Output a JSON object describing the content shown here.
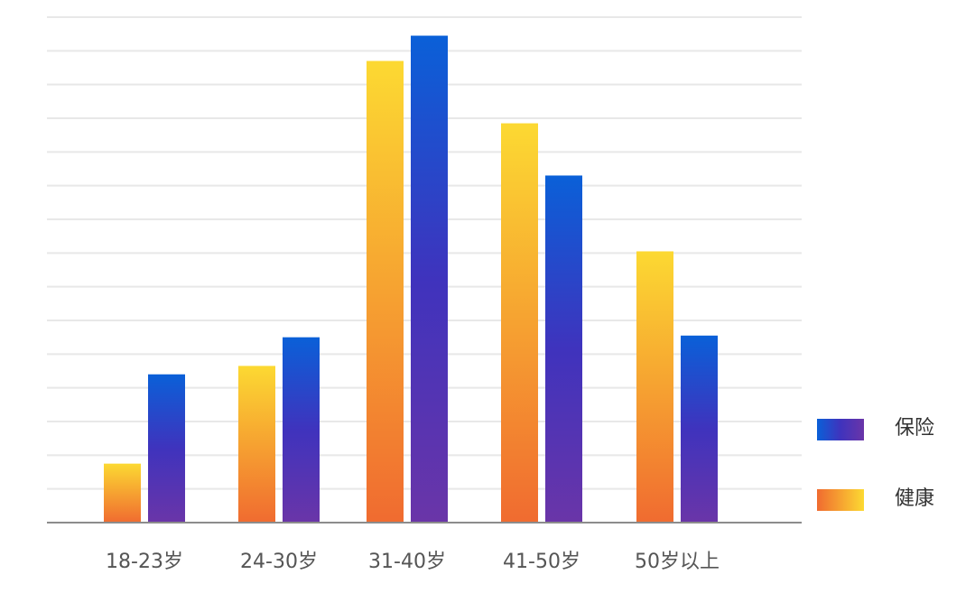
{
  "chart_data": {
    "type": "bar",
    "categories": [
      "18-23岁",
      "24-30岁",
      "31-40岁",
      "41-50岁",
      "50岁以上"
    ],
    "series": [
      {
        "name": "健康",
        "values": [
          3.5,
          9.3,
          27.4,
          23.7,
          16.1
        ],
        "gradient": {
          "top": "#fcd932",
          "bottom": "#f06b30"
        }
      },
      {
        "name": "保险",
        "values": [
          8.8,
          11.0,
          28.9,
          20.6,
          11.1
        ],
        "gradient": {
          "top": "#0a60d8",
          "middle": "#3f33bd",
          "bottom": "#6a35a8"
        }
      }
    ],
    "ylim": [
      0,
      30
    ],
    "grid": true,
    "legend_position": "right",
    "colors": {
      "grid": "#e8e8e8",
      "axis": "#8c8c8c",
      "tick_text": "#555555"
    }
  }
}
